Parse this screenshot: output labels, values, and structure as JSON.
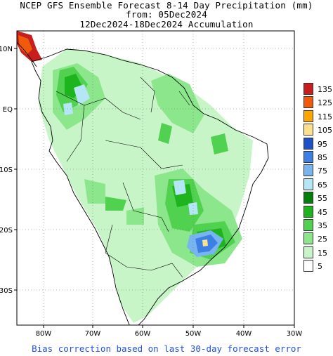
{
  "title": {
    "line1": "NCEP GFS Ensemble Forecast 8-14 Day Precipitation (mm)",
    "line2": "from: 05Dec2024",
    "line3": "12Dec2024-18Dec2024 Accumulation"
  },
  "map": {
    "lon_labels": [
      "80W",
      "70W",
      "60W",
      "50W",
      "40W",
      "30W"
    ],
    "lat_labels": [
      "10N",
      "EQ",
      "10S",
      "20S",
      "30S"
    ],
    "grid": "dotted"
  },
  "legend": {
    "levels": [
      {
        "label": "135",
        "color": "#c81e1e"
      },
      {
        "label": "125",
        "color": "#f05a0a"
      },
      {
        "label": "115",
        "color": "#ffa500"
      },
      {
        "label": "105",
        "color": "#fde08c"
      },
      {
        "label": "95",
        "color": "#1e50c8"
      },
      {
        "label": "85",
        "color": "#3c80e6"
      },
      {
        "label": "75",
        "color": "#78b4f0"
      },
      {
        "label": "65",
        "color": "#b4e6f5"
      },
      {
        "label": "55",
        "color": "#00800a"
      },
      {
        "label": "45",
        "color": "#1eb41e"
      },
      {
        "label": "35",
        "color": "#50d250"
      },
      {
        "label": "25",
        "color": "#8ce68c"
      },
      {
        "label": "15",
        "color": "#c8f5c8"
      },
      {
        "label": "5",
        "color": "#ffffff"
      }
    ]
  },
  "footnote": "Bias correction based on last 30-day forecast error"
}
